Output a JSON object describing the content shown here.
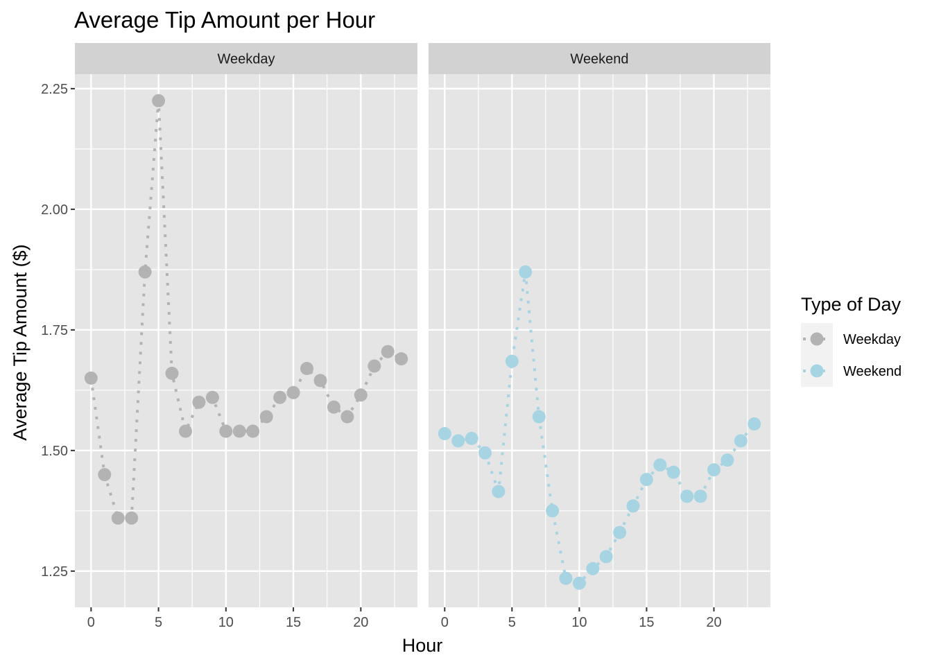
{
  "chart_data": {
    "type": "line",
    "title": "Average Tip Amount per Hour",
    "xlabel": "Hour",
    "ylabel": "Average Tip Amount ($)",
    "xlim": [
      -1.2,
      24.2
    ],
    "ylim": [
      1.175,
      2.28
    ],
    "x_ticks": [
      0,
      5,
      10,
      15,
      20
    ],
    "y_ticks": [
      1.25,
      1.5,
      1.75,
      2.0,
      2.25
    ],
    "y_tick_labels": [
      "1.25",
      "1.50",
      "1.75",
      "2.00",
      "2.25"
    ],
    "grid": true,
    "legend": {
      "title": "Type of Day",
      "position": "right",
      "entries": [
        "Weekday",
        "Weekend"
      ]
    },
    "facets": [
      {
        "label": "Weekday",
        "series": "Weekday",
        "color": "#b3b3b3",
        "x": [
          0,
          1,
          2,
          3,
          4,
          5,
          6,
          7,
          8,
          9,
          10,
          11,
          12,
          13,
          14,
          15,
          16,
          17,
          18,
          19,
          20,
          21,
          22,
          23
        ],
        "y": [
          1.65,
          1.45,
          1.36,
          1.36,
          1.87,
          2.225,
          1.66,
          1.54,
          1.6,
          1.61,
          1.54,
          1.54,
          1.54,
          1.57,
          1.61,
          1.62,
          1.67,
          1.645,
          1.59,
          1.57,
          1.615,
          1.675,
          1.705,
          1.69
        ]
      },
      {
        "label": "Weekend",
        "series": "Weekend",
        "color": "#a6d4e3",
        "x": [
          0,
          1,
          2,
          3,
          4,
          5,
          6,
          7,
          8,
          9,
          10,
          11,
          12,
          13,
          14,
          15,
          16,
          17,
          18,
          19,
          20,
          21,
          22,
          23
        ],
        "y": [
          1.535,
          1.52,
          1.525,
          1.495,
          1.415,
          1.685,
          1.87,
          1.57,
          1.375,
          1.235,
          1.225,
          1.255,
          1.28,
          1.33,
          1.385,
          1.44,
          1.47,
          1.455,
          1.405,
          1.405,
          1.46,
          1.48,
          1.52,
          1.555
        ]
      }
    ]
  },
  "colors": {
    "panel_background": "#e5e5e5",
    "strip_background": "#d2d2d2",
    "grid_line": "#ffffff",
    "weekday": "#b3b3b3",
    "weekend": "#a6d4e3"
  }
}
